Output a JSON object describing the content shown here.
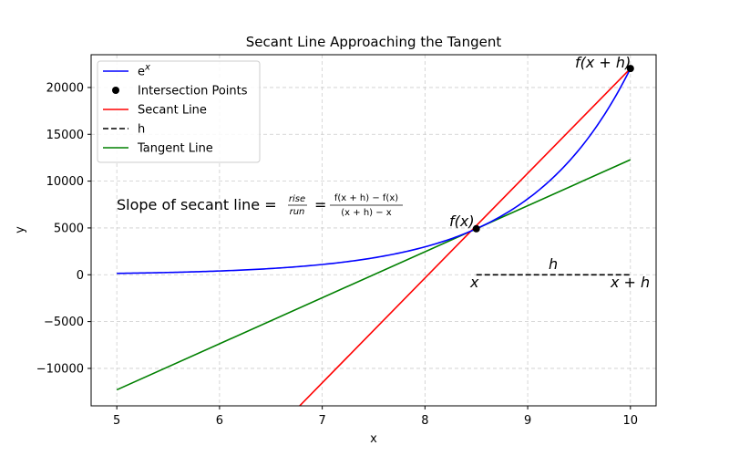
{
  "chart_data": {
    "type": "line",
    "title": "Secant Line Approaching the Tangent",
    "xlabel": "x",
    "ylabel": "y",
    "xlim": [
      4.75,
      10.25
    ],
    "ylim": [
      -14000,
      23500
    ],
    "xticks": [
      5,
      6,
      7,
      8,
      9,
      10
    ],
    "yticks": [
      -10000,
      -5000,
      0,
      5000,
      10000,
      15000,
      20000
    ],
    "grid": true,
    "legend_position": "upper-left",
    "x_point": 8.5,
    "h_value": 1.5,
    "series": [
      {
        "name": "e^x",
        "kind": "curve",
        "function": "exp",
        "x_range": [
          5,
          10
        ],
        "color": "#0000ff"
      },
      {
        "name": "Intersection Points",
        "kind": "points",
        "x": [
          8.5,
          10
        ],
        "y": [
          4915,
          22026
        ],
        "color": "#000000"
      },
      {
        "name": "Secant Line",
        "kind": "line",
        "x": [
          6.78,
          10
        ],
        "y": [
          -14000,
          22026
        ],
        "color": "#ff0000"
      },
      {
        "name": "h",
        "kind": "dashed-segment",
        "x": [
          8.5,
          10
        ],
        "y": [
          0,
          0
        ],
        "color": "#000000"
      },
      {
        "name": "Tangent Line",
        "kind": "line",
        "x": [
          5,
          10
        ],
        "y": [
          -12288,
          12288
        ],
        "color": "#008000"
      }
    ],
    "legend": [
      {
        "label": "e",
        "sup": "x",
        "marker": "line",
        "color": "#0000ff"
      },
      {
        "label": "Intersection Points",
        "sup": "",
        "marker": "dot",
        "color": "#000000"
      },
      {
        "label": "Secant Line",
        "sup": "",
        "marker": "line",
        "color": "#ff0000"
      },
      {
        "label": "h",
        "sup": "",
        "marker": "dashed",
        "color": "#000000"
      },
      {
        "label": "Tangent Line",
        "sup": "",
        "marker": "line",
        "color": "#008000"
      }
    ],
    "annotations": {
      "fx_label": "f(x)",
      "fxh_label": "f(x + h)",
      "x_label": "x",
      "xh_label": "x + h",
      "h_label": "h",
      "formula_prefix": "Slope of secant line = ",
      "rise": "rise",
      "run": "run",
      "equals": "=",
      "diff_num": "f(x + h) − f(x)",
      "diff_den": "(x + h) − x"
    }
  }
}
